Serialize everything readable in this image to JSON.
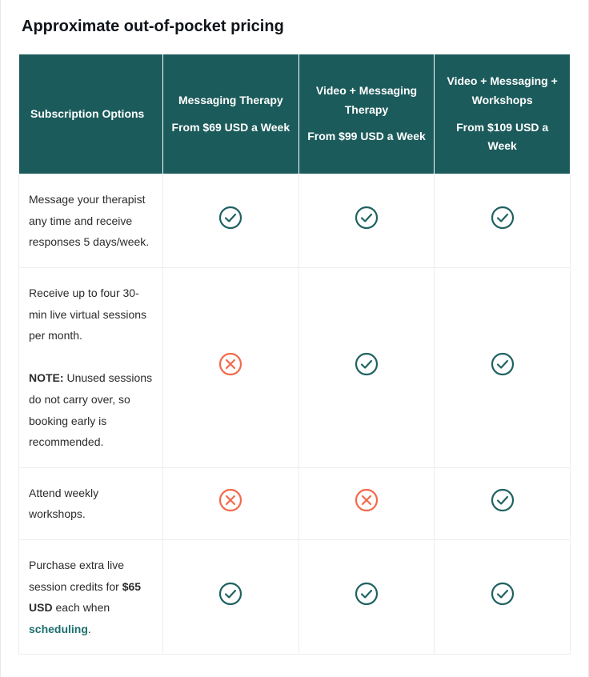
{
  "title": "Approximate out-of-pocket pricing",
  "colors": {
    "header_bg": "#1c5b5b",
    "header_fg": "#ffffff",
    "border": "#ededed",
    "text": "#2b2b2b",
    "link": "#1c6e6e",
    "check": "#1f6262",
    "cross": "#f26a4b"
  },
  "table": {
    "row_header": "Subscription Options",
    "plans": [
      {
        "name": "Messaging Therapy",
        "price": "From $69 USD a Week"
      },
      {
        "name": "Video + Messaging Therapy",
        "price": "From $99 USD a Week"
      },
      {
        "name": "Video + Messaging + Workshops",
        "price": "From $109 USD a Week"
      }
    ],
    "rows": [
      {
        "label_html": "Message your therapist any time and receive responses 5 days/week.",
        "values": [
          "check",
          "check",
          "check"
        ]
      },
      {
        "label_html": "Receive up to four 30-min live virtual sessions per month.<br><br><span class=\"note-label\">NOTE:</span> Unused sessions do not carry over, so booking early is recommended.",
        "values": [
          "cross",
          "check",
          "check"
        ]
      },
      {
        "label_html": "Attend weekly workshops.",
        "values": [
          "cross",
          "cross",
          "check"
        ]
      },
      {
        "label_html": "Purchase extra live session credits for <span class=\"bold\">$65 USD</span> each when <span class=\"link\">scheduling</span>.",
        "values": [
          "check",
          "check",
          "check"
        ]
      }
    ]
  },
  "icons": {
    "check": {
      "type": "check",
      "size": 32,
      "stroke": "#1f6262"
    },
    "cross": {
      "type": "cross",
      "size": 32,
      "stroke": "#f26a4b"
    }
  }
}
